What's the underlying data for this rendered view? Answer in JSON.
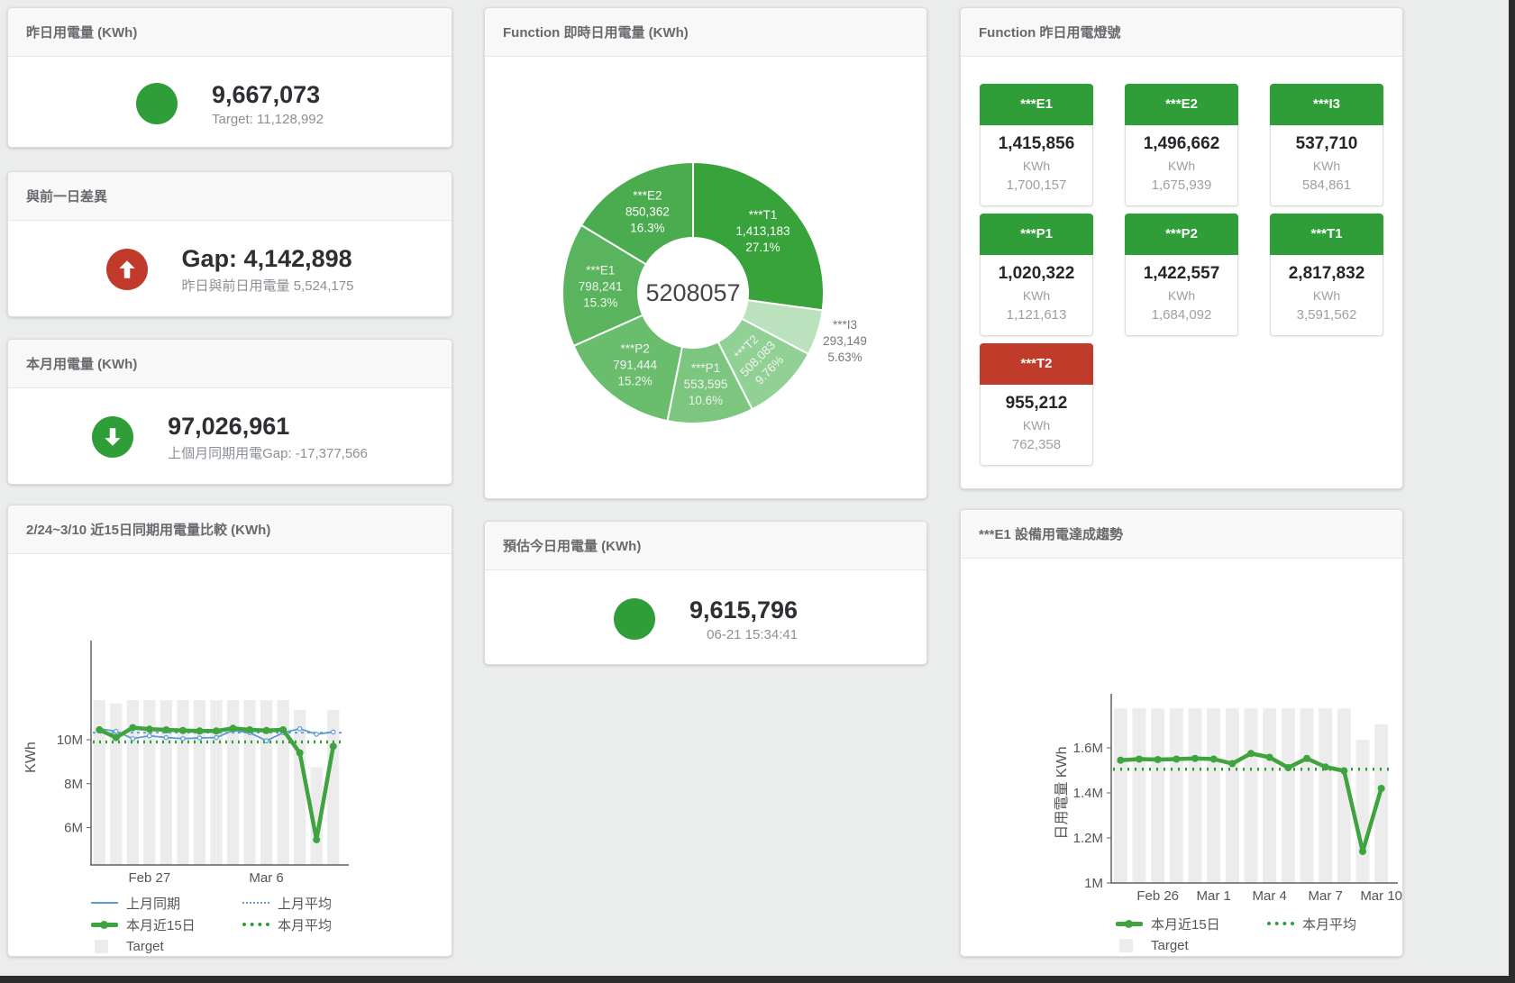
{
  "theme": {
    "green": "#2f9e38",
    "red": "#c13b2b",
    "blue": "#5d9cd3",
    "line_green": "#3fa33f",
    "bar_gray": "#ececec"
  },
  "cards": {
    "yesterday": {
      "title": "昨日用電量 (KWh)",
      "value": "9,667,073",
      "sub": "Target: 11,128,992",
      "status": "green"
    },
    "day_gap": {
      "title": "與前一日差異",
      "value": "Gap: 4,142,898",
      "sub": "昨日與前日用電量 5,524,175",
      "status": "red"
    },
    "month": {
      "title": "本月用電量 (KWh)",
      "value": "97,026,961",
      "sub": "上個月同期用電Gap: -17,377,566",
      "status": "green"
    },
    "estimate": {
      "title": "預估今日用電量 (KWh)",
      "value": "9,615,796",
      "sub": "06-21 15:34:41",
      "status": "green"
    },
    "realtime_donut": {
      "title": "Function 即時日用電量 (KWh)"
    },
    "status_tiles": {
      "title": "Function 昨日用電燈號",
      "tiles": [
        {
          "label": "***E1",
          "value": "1,415,856",
          "unit": "KWh",
          "target": "1,700,157",
          "status": "green"
        },
        {
          "label": "***E2",
          "value": "1,496,662",
          "unit": "KWh",
          "target": "1,675,939",
          "status": "green"
        },
        {
          "label": "***I3",
          "value": "537,710",
          "unit": "KWh",
          "target": "584,861",
          "status": "green"
        },
        {
          "label": "***P1",
          "value": "1,020,322",
          "unit": "KWh",
          "target": "1,121,613",
          "status": "green"
        },
        {
          "label": "***P2",
          "value": "1,422,557",
          "unit": "KWh",
          "target": "1,684,092",
          "status": "green"
        },
        {
          "label": "***T1",
          "value": "2,817,832",
          "unit": "KWh",
          "target": "3,591,562",
          "status": "green"
        },
        {
          "label": "***T2",
          "value": "955,212",
          "unit": "KWh",
          "target": "762,358",
          "status": "red"
        }
      ]
    },
    "compare_chart": {
      "title": "2/24~3/10 近15日同期用電量比較 (KWh)"
    },
    "trend_chart": {
      "title": "***E1 設備用電達成趨勢"
    }
  },
  "chart_data": [
    {
      "id": "realtime-donut",
      "type": "pie",
      "title": "Function 即時日用電量 (KWh)",
      "center_total": "5208057",
      "slices": [
        {
          "name": "***T1",
          "value": 1413183,
          "value_label": "1,413,183",
          "pct": "27.1%",
          "color": "#38a23b",
          "bright": true
        },
        {
          "name": "***I3",
          "value": 293149,
          "value_label": "293,149",
          "pct": "5.63%",
          "color": "#bce2bd",
          "label_outside": true
        },
        {
          "name": "***T2",
          "value": 508083,
          "value_label": "508,083",
          "pct": "9.76%",
          "color": "#92d195",
          "label_tangential": true
        },
        {
          "name": "***P1",
          "value": 553595,
          "value_label": "553,595",
          "pct": "10.6%",
          "color": "#7cc67f"
        },
        {
          "name": "***P2",
          "value": 791444,
          "value_label": "791,444",
          "pct": "15.2%",
          "color": "#6abd6d"
        },
        {
          "name": "***E1",
          "value": 798241,
          "value_label": "798,241",
          "pct": "15.3%",
          "color": "#5ab45e"
        },
        {
          "name": "***E2",
          "value": 850362,
          "value_label": "850,362",
          "pct": "16.3%",
          "color": "#4bac4f",
          "bright": true
        }
      ]
    },
    {
      "id": "compare-15days",
      "type": "line",
      "title": "2/24~3/10 近15日同期用電量比較 (KWh)",
      "ylabel": "KWh",
      "ylim": [
        4300000,
        14100000
      ],
      "yticks": [
        {
          "v": 6000000,
          "label": "6M"
        },
        {
          "v": 8000000,
          "label": "8M"
        },
        {
          "v": 10000000,
          "label": "10M"
        }
      ],
      "xticks": [
        {
          "i": 3,
          "label": "Feb 27"
        },
        {
          "i": 10,
          "label": "Mar 6"
        }
      ],
      "bars": {
        "name": "Target",
        "color": "#ececec",
        "values": [
          11800000,
          11650000,
          11800000,
          11800000,
          11800000,
          11800000,
          11800000,
          11800000,
          11800000,
          11800000,
          11800000,
          11800000,
          11350000,
          8750000,
          11350000
        ]
      },
      "series": [
        {
          "name": "上月同期",
          "color": "#5d9cd3",
          "width": 1.8,
          "marker": 2.2,
          "marker_fill": "#fff",
          "marker_stroke": 1.2,
          "values": [
            10500000,
            10380000,
            10050000,
            10180000,
            10100000,
            10050000,
            10080000,
            10100000,
            10420000,
            10320000,
            9950000,
            10320000,
            10500000,
            10250000,
            10350000
          ]
        },
        {
          "name": "上月平均",
          "color": "#5d9cd3",
          "width": 1.8,
          "dash": "3 4",
          "avg": 10320000
        },
        {
          "name": "本月近15日",
          "color": "#3fa33f",
          "width": 4.5,
          "marker": 4,
          "values": [
            10450000,
            10100000,
            10550000,
            10480000,
            10450000,
            10420000,
            10400000,
            10400000,
            10520000,
            10450000,
            10420000,
            10450000,
            9400000,
            5450000,
            9700000
          ]
        },
        {
          "name": "本月平均",
          "color": "#2f9e38",
          "width": 3.4,
          "dash": "2 5",
          "avg": 9900000
        }
      ],
      "legend_position": "bottom"
    },
    {
      "id": "e1-trend",
      "type": "line",
      "title": "***E1 設備用電達成趨勢",
      "ylabel": "日用電量 KWh",
      "ylim": [
        1000000,
        1800000
      ],
      "yticks": [
        {
          "v": 1000000,
          "label": "1M"
        },
        {
          "v": 1200000,
          "label": "1.2M"
        },
        {
          "v": 1400000,
          "label": "1.4M"
        },
        {
          "v": 1600000,
          "label": "1.6M"
        }
      ],
      "xticks": [
        {
          "i": 2,
          "label": "Feb 26"
        },
        {
          "i": 5,
          "label": "Mar 1"
        },
        {
          "i": 8,
          "label": "Mar 4"
        },
        {
          "i": 11,
          "label": "Mar 7"
        },
        {
          "i": 14,
          "label": "Mar 10"
        }
      ],
      "bars": {
        "name": "Target",
        "color": "#ececec",
        "values": [
          1775000,
          1775000,
          1775000,
          1775000,
          1775000,
          1775000,
          1775000,
          1775000,
          1775000,
          1775000,
          1775000,
          1775000,
          1775000,
          1635000,
          1705000
        ]
      },
      "series": [
        {
          "name": "本月近15日",
          "color": "#3fa33f",
          "width": 4.5,
          "marker": 4,
          "values": [
            1545000,
            1550000,
            1548000,
            1550000,
            1553000,
            1550000,
            1530000,
            1575000,
            1558000,
            1512000,
            1553000,
            1515000,
            1498000,
            1140000,
            1420000
          ]
        },
        {
          "name": "本月平均",
          "color": "#2f9e38",
          "width": 3.5,
          "dash": "2 6",
          "avg": 1505000
        }
      ],
      "legend_position": "bottom"
    }
  ]
}
